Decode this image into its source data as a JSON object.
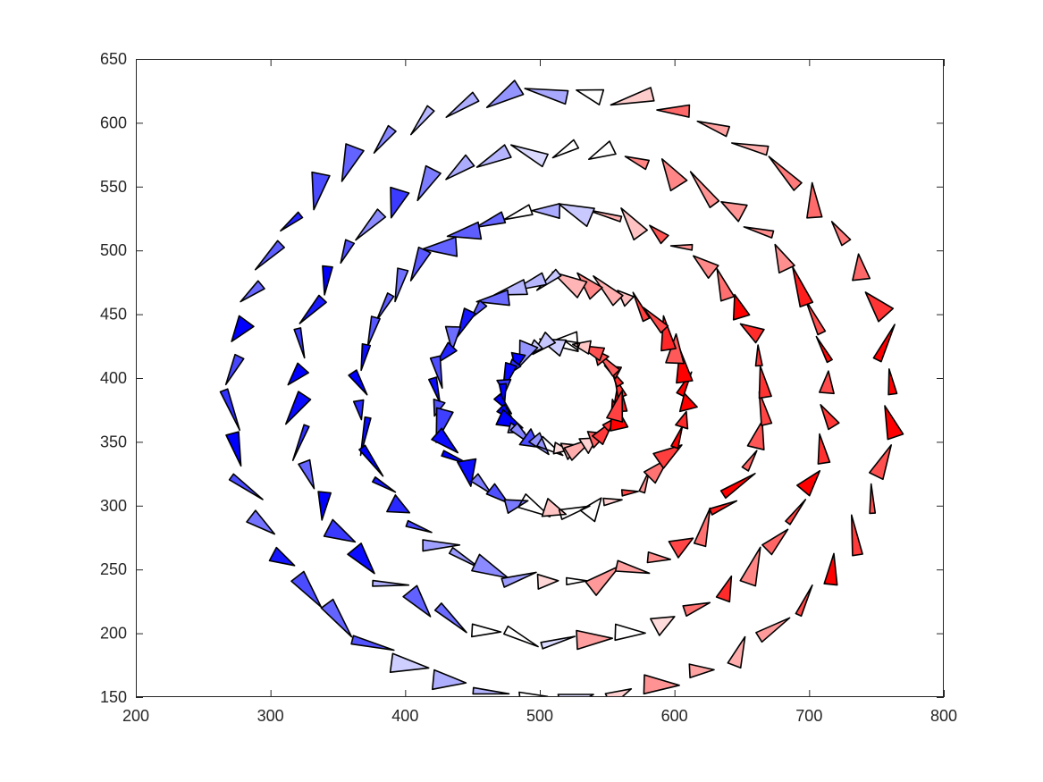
{
  "chart_data": {
    "type": "scatter",
    "title": "",
    "xlabel": "",
    "ylabel": "",
    "xlim": [
      200,
      800
    ],
    "ylim": [
      150,
      650
    ],
    "xticks": [
      200,
      300,
      400,
      500,
      600,
      700,
      800
    ],
    "yticks": [
      150,
      200,
      250,
      300,
      350,
      400,
      450,
      500,
      550,
      600,
      650
    ],
    "xtick_labels": [
      "200",
      "300",
      "400",
      "500",
      "600",
      "700",
      "800"
    ],
    "ytick_labels": [
      "150",
      "200",
      "250",
      "300",
      "350",
      "400",
      "450",
      "500",
      "550",
      "600",
      "650"
    ],
    "grid": false,
    "legend": "none",
    "marker": "triangle",
    "colormap": {
      "low": "#0000ff",
      "mid": "#ffffff",
      "high": "#ff0000",
      "edge": "#000000"
    },
    "center": [
      516,
      386
    ],
    "rings": [
      {
        "radius": 43,
        "count": 36
      },
      {
        "radius": 93,
        "count": 40
      },
      {
        "radius": 150,
        "count": 44
      },
      {
        "radius": 198,
        "count": 46
      },
      {
        "radius": 245,
        "count": 48
      }
    ]
  }
}
